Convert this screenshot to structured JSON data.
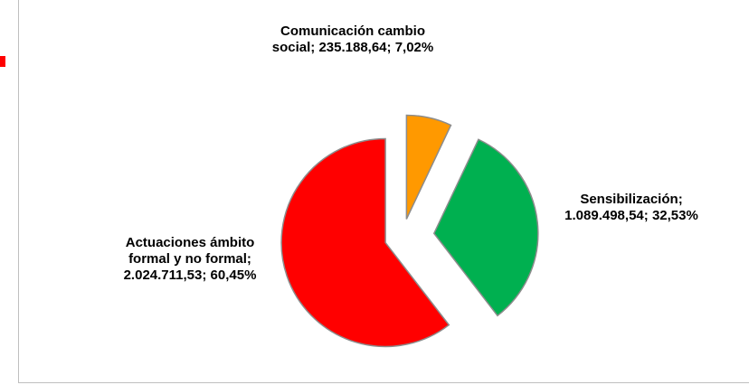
{
  "chart_data": {
    "type": "pie",
    "categories": [
      "Comunicación cambio social",
      "Sensibilización",
      "Actuaciones ámbito formal y no formal"
    ],
    "values": [
      235188.64,
      1089498.54,
      2024711.53
    ],
    "value_labels": [
      "235.188,64",
      "1.089.498,54",
      "2.024.711,53"
    ],
    "percents": [
      7.02,
      32.53,
      60.45
    ],
    "percent_labels": [
      "7,02%",
      "32,53%",
      "60,45%"
    ],
    "label_separator": ";",
    "colors": [
      "#ff9900",
      "#00b050",
      "#ff0000"
    ]
  }
}
